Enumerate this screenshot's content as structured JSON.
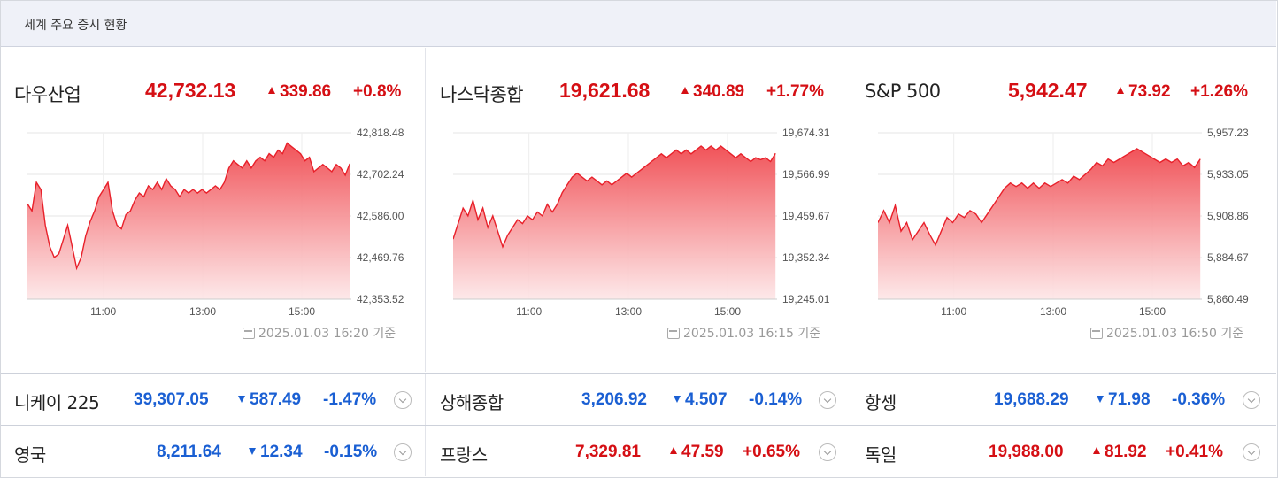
{
  "header": {
    "title": "세계 주요 증시 현황"
  },
  "major_indices": [
    {
      "name": "다우산업",
      "value": "42,732.13",
      "change": "339.86",
      "percent": "+0.8%",
      "direction": "up",
      "timestamp": "2025.01.03 16:20 기준",
      "chart_data": {
        "type": "area",
        "x_ticks": [
          "11:00",
          "13:00",
          "15:00"
        ],
        "y_ticks": [
          "42,818.48",
          "42,702.24",
          "42,586.00",
          "42,469.76",
          "42,353.52"
        ],
        "ylim": [
          42353.52,
          42818.48
        ],
        "color": "#e8202a",
        "values": [
          42620,
          42600,
          42680,
          42660,
          42560,
          42500,
          42470,
          42480,
          42520,
          42560,
          42500,
          42440,
          42470,
          42530,
          42570,
          42600,
          42640,
          42660,
          42680,
          42600,
          42560,
          42550,
          42590,
          42600,
          42630,
          42650,
          42640,
          42670,
          42660,
          42680,
          42660,
          42690,
          42670,
          42660,
          42640,
          42660,
          42650,
          42660,
          42650,
          42660,
          42650,
          42660,
          42670,
          42660,
          42680,
          42720,
          42740,
          42730,
          42720,
          42740,
          42720,
          42740,
          42750,
          42740,
          42760,
          42750,
          42770,
          42760,
          42790,
          42780,
          42770,
          42760,
          42740,
          42750,
          42710,
          42720,
          42730,
          42720,
          42710,
          42730,
          42720,
          42700,
          42732
        ]
      }
    },
    {
      "name": "나스닥종합",
      "value": "19,621.68",
      "change": "340.89",
      "percent": "+1.77%",
      "direction": "up",
      "timestamp": "2025.01.03 16:15 기준",
      "chart_data": {
        "type": "area",
        "x_ticks": [
          "11:00",
          "13:00",
          "15:00"
        ],
        "y_ticks": [
          "19,674.31",
          "19,566.99",
          "19,459.67",
          "19,352.34",
          "19,245.01"
        ],
        "ylim": [
          19245.01,
          19674.31
        ],
        "color": "#e8202a",
        "values": [
          19400,
          19440,
          19480,
          19460,
          19500,
          19450,
          19480,
          19430,
          19460,
          19420,
          19380,
          19410,
          19430,
          19450,
          19440,
          19460,
          19450,
          19470,
          19460,
          19490,
          19470,
          19490,
          19520,
          19540,
          19560,
          19570,
          19560,
          19550,
          19560,
          19550,
          19540,
          19550,
          19540,
          19550,
          19560,
          19570,
          19560,
          19570,
          19580,
          19590,
          19600,
          19610,
          19620,
          19610,
          19620,
          19630,
          19620,
          19630,
          19620,
          19630,
          19640,
          19630,
          19640,
          19630,
          19640,
          19630,
          19620,
          19610,
          19620,
          19610,
          19600,
          19610,
          19605,
          19610,
          19600,
          19621
        ]
      }
    },
    {
      "name": "S&P 500",
      "value": "5,942.47",
      "change": "73.92",
      "percent": "+1.26%",
      "direction": "up",
      "timestamp": "2025.01.03 16:50 기준",
      "chart_data": {
        "type": "area",
        "x_ticks": [
          "11:00",
          "13:00",
          "15:00"
        ],
        "y_ticks": [
          "5,957.23",
          "5,933.05",
          "5,908.86",
          "5,884.67",
          "5,860.49"
        ],
        "ylim": [
          5860.49,
          5957.23
        ],
        "color": "#e8202a",
        "values": [
          5905,
          5912,
          5905,
          5915,
          5900,
          5905,
          5895,
          5900,
          5905,
          5898,
          5892,
          5900,
          5908,
          5905,
          5910,
          5908,
          5912,
          5910,
          5905,
          5910,
          5915,
          5920,
          5925,
          5928,
          5926,
          5928,
          5925,
          5928,
          5925,
          5928,
          5926,
          5928,
          5930,
          5928,
          5932,
          5930,
          5933,
          5936,
          5940,
          5938,
          5942,
          5940,
          5942,
          5944,
          5946,
          5948,
          5946,
          5944,
          5942,
          5940,
          5942,
          5940,
          5942,
          5938,
          5940,
          5937,
          5942
        ]
      }
    }
  ],
  "markets": [
    [
      {
        "name": "니케이 225",
        "value": "39,307.05",
        "change": "587.49",
        "percent": "-1.47%",
        "direction": "down"
      },
      {
        "name": "상해종합",
        "value": "3,206.92",
        "change": "4.507",
        "percent": "-0.14%",
        "direction": "down"
      },
      {
        "name": "항셍",
        "value": "19,688.29",
        "change": "71.98",
        "percent": "-0.36%",
        "direction": "down"
      }
    ],
    [
      {
        "name": "영국",
        "value": "8,211.64",
        "change": "12.34",
        "percent": "-0.15%",
        "direction": "down"
      },
      {
        "name": "프랑스",
        "value": "7,329.81",
        "change": "47.59",
        "percent": "+0.65%",
        "direction": "up"
      },
      {
        "name": "독일",
        "value": "19,988.00",
        "change": "81.92",
        "percent": "+0.41%",
        "direction": "up"
      }
    ]
  ],
  "colors": {
    "up": "#d50f14",
    "down": "#1a5fd3",
    "header_bg": "#eff1f8"
  }
}
